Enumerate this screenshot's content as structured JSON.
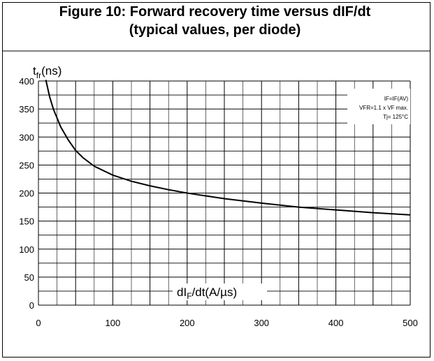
{
  "title_line1": "Figure 10: Forward recovery time versus dIF/dt",
  "title_line2": "(typical values, per diode)",
  "chart_data": {
    "type": "line",
    "title": "Figure 10: Forward recovery time versus dIF/dt (typical values, per diode)",
    "ylabel_main": "t",
    "ylabel_sub": "fr",
    "ylabel_unit": "(ns)",
    "xlabel_pre": "dI",
    "xlabel_sub": "F",
    "xlabel_post": "/dt(A/µs)",
    "xlim": [
      0,
      500
    ],
    "ylim": [
      0,
      400
    ],
    "xticks": [
      0,
      100,
      200,
      300,
      400,
      500
    ],
    "yticks": [
      0,
      50,
      100,
      150,
      200,
      250,
      300,
      350,
      400
    ],
    "grid": true,
    "legend_position": "top-right",
    "conditions": [
      "IF=IF(AV)",
      "VFR=1.1 x VF max.",
      "Tj= 125°C"
    ],
    "series": [
      {
        "x": [
          10,
          15,
          20,
          30,
          40,
          50,
          60,
          75,
          100,
          125,
          150,
          175,
          200,
          250,
          300,
          350,
          400,
          450,
          500
        ],
        "y": [
          402,
          372,
          350,
          318,
          295,
          276,
          263,
          248,
          232,
          221,
          213,
          206,
          200,
          190,
          182,
          175,
          170,
          165,
          161
        ]
      }
    ]
  }
}
